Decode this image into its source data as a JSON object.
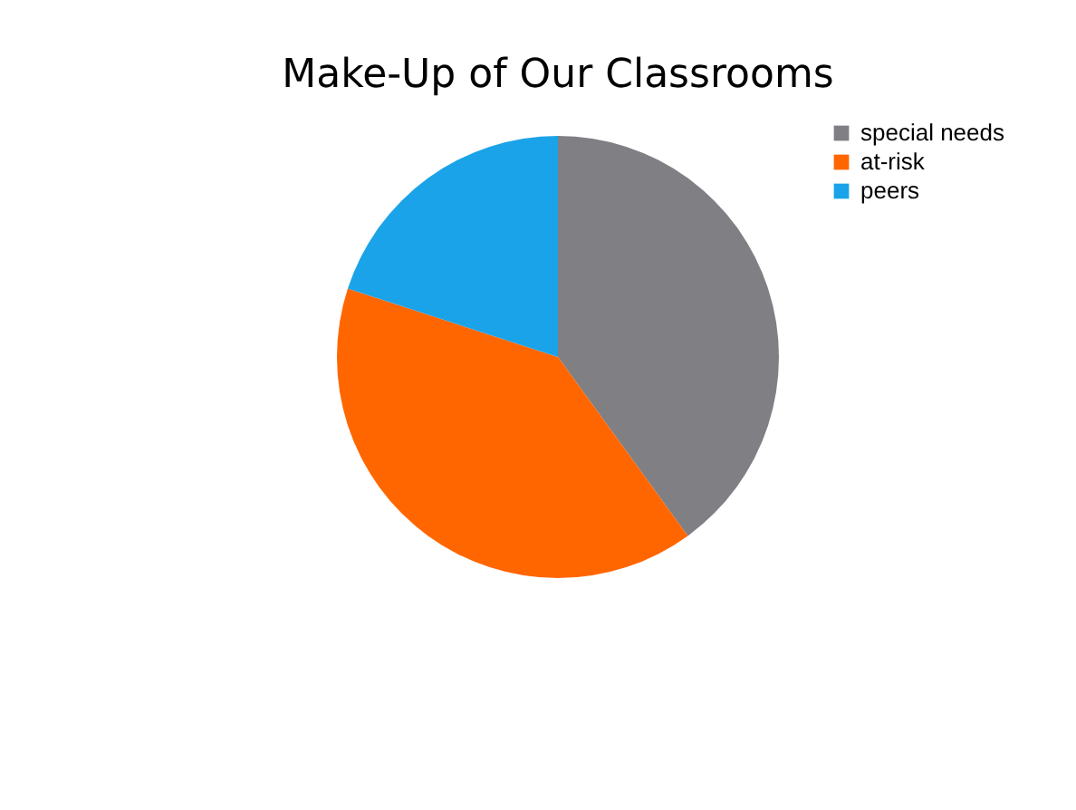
{
  "chart_data": {
    "type": "pie",
    "title": "Make-Up of Our Classrooms",
    "categories": [
      "special needs",
      "at-risk",
      "peers"
    ],
    "values": [
      40,
      40,
      20
    ],
    "colors": [
      "#7f7f84",
      "#ff6600",
      "#1aa3e8"
    ],
    "legend": "right"
  }
}
